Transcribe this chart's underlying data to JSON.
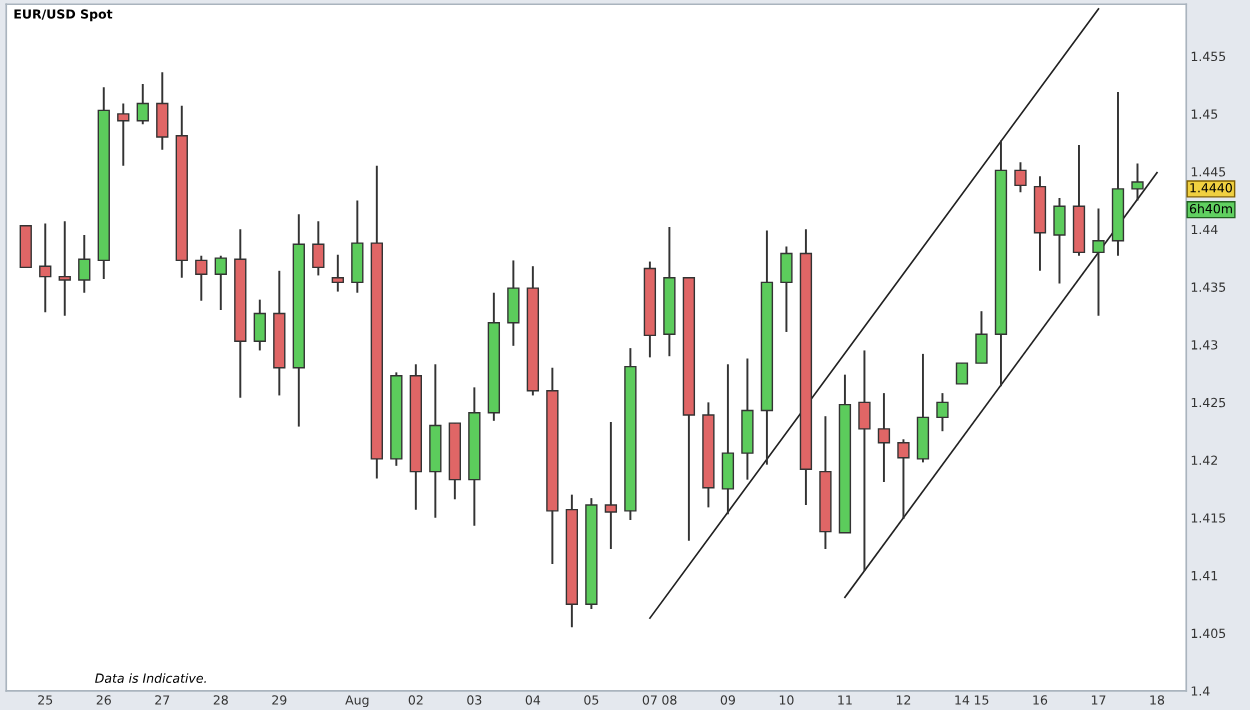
{
  "chart_data": {
    "type": "candlestick",
    "title": "EUR/USD Spot",
    "categories": [
      null,
      "25",
      null,
      null,
      "26",
      null,
      null,
      "27",
      null,
      null,
      "28",
      null,
      null,
      "29",
      null,
      null,
      null,
      "Aug",
      null,
      null,
      "02",
      null,
      null,
      "03",
      null,
      null,
      "04",
      null,
      null,
      "05",
      null,
      null,
      "07",
      "08",
      null,
      null,
      "09",
      null,
      null,
      "10",
      null,
      null,
      "11",
      null,
      null,
      "12",
      null,
      null,
      "14",
      "15",
      null,
      null,
      "16",
      null,
      null,
      "17",
      null,
      null,
      "18"
    ],
    "ohlc": [
      [
        1.4403,
        1.4403,
        1.4367,
        1.4367
      ],
      [
        1.4368,
        1.4405,
        1.4328,
        1.4359
      ],
      [
        1.4359,
        1.4407,
        1.4325,
        1.4356
      ],
      [
        1.4356,
        1.4395,
        1.4345,
        1.4374
      ],
      [
        1.4373,
        1.4523,
        1.4357,
        1.4503
      ],
      [
        1.45,
        1.4509,
        1.4455,
        1.4494
      ],
      [
        1.4494,
        1.4526,
        1.4491,
        1.4509
      ],
      [
        1.4509,
        1.4536,
        1.4469,
        1.448
      ],
      [
        1.4481,
        1.4507,
        1.4358,
        1.4373
      ],
      [
        1.4373,
        1.4377,
        1.4338,
        1.4361
      ],
      [
        1.4361,
        1.4377,
        1.433,
        1.4375
      ],
      [
        1.4374,
        1.44,
        1.4254,
        1.4303
      ],
      [
        1.4303,
        1.4339,
        1.4295,
        1.4327
      ],
      [
        1.4327,
        1.4364,
        1.4256,
        1.428
      ],
      [
        1.428,
        1.4413,
        1.4229,
        1.4387
      ],
      [
        1.4387,
        1.4407,
        1.436,
        1.4367
      ],
      [
        1.4358,
        1.4378,
        1.4346,
        1.4354
      ],
      [
        1.4354,
        1.4425,
        1.4345,
        1.4388
      ],
      [
        1.4388,
        1.4455,
        1.4184,
        1.4201
      ],
      [
        1.4201,
        1.4276,
        1.4195,
        1.4273
      ],
      [
        1.4273,
        1.4283,
        1.4157,
        1.419
      ],
      [
        1.419,
        1.4283,
        1.415,
        1.423
      ],
      [
        1.4232,
        1.4232,
        1.4166,
        1.4183
      ],
      [
        1.4183,
        1.4263,
        1.4143,
        1.4241
      ],
      [
        1.4241,
        1.4345,
        1.4234,
        1.4319
      ],
      [
        1.4319,
        1.4373,
        1.4299,
        1.4349
      ],
      [
        1.4349,
        1.4368,
        1.4256,
        1.426
      ],
      [
        1.426,
        1.428,
        1.411,
        1.4156
      ],
      [
        1.4157,
        1.417,
        1.4055,
        1.4075
      ],
      [
        1.4075,
        1.4167,
        1.4071,
        1.4161
      ],
      [
        1.4161,
        1.4233,
        1.4123,
        1.4155
      ],
      [
        1.4156,
        1.4297,
        1.4148,
        1.4281
      ],
      [
        1.4366,
        1.4372,
        1.4289,
        1.4308
      ],
      [
        1.4309,
        1.4402,
        1.429,
        1.4358
      ],
      [
        1.4358,
        1.4358,
        1.413,
        1.4239
      ],
      [
        1.4239,
        1.425,
        1.4159,
        1.4176
      ],
      [
        1.4175,
        1.4283,
        1.4153,
        1.4206
      ],
      [
        1.4206,
        1.4288,
        1.4183,
        1.4243
      ],
      [
        1.4243,
        1.4399,
        1.4196,
        1.4354
      ],
      [
        1.4354,
        1.4385,
        1.4311,
        1.4379
      ],
      [
        1.4379,
        1.44,
        1.4161,
        1.4192
      ],
      [
        1.419,
        1.4238,
        1.4123,
        1.4138
      ],
      [
        1.4137,
        1.4274,
        1.4137,
        1.4248
      ],
      [
        1.425,
        1.4295,
        1.4104,
        1.4227
      ],
      [
        1.4227,
        1.4258,
        1.4181,
        1.4215
      ],
      [
        1.4215,
        1.4218,
        1.4149,
        1.4202
      ],
      [
        1.4201,
        1.4292,
        1.4198,
        1.4237
      ],
      [
        1.4237,
        1.4258,
        1.4225,
        1.425
      ],
      [
        1.4266,
        1.4284,
        1.4266,
        1.4284
      ],
      [
        1.4284,
        1.4329,
        1.4284,
        1.4309
      ],
      [
        1.4309,
        1.4477,
        1.4264,
        1.4451
      ],
      [
        1.4451,
        1.4458,
        1.4432,
        1.4438
      ],
      [
        1.4437,
        1.4446,
        1.4364,
        1.4397
      ],
      [
        1.4395,
        1.4427,
        1.4353,
        1.442
      ],
      [
        1.442,
        1.4473,
        1.4377,
        1.438
      ],
      [
        1.438,
        1.4418,
        1.4325,
        1.439
      ],
      [
        1.439,
        1.4519,
        1.4377,
        1.4435
      ],
      [
        1.4435,
        1.4457,
        1.4425,
        1.4441
      ],
      null
    ],
    "colors": [
      "#e06666",
      "#e06666",
      "#e06666",
      "#5ccc5c",
      "#5ccc5c",
      "#e06666",
      "#5ccc5c",
      "#e06666",
      "#e06666",
      "#e06666",
      "#5ccc5c",
      "#e06666",
      "#5ccc5c",
      "#e06666",
      "#5ccc5c",
      "#e06666",
      "#e06666",
      "#5ccc5c",
      "#e06666",
      "#5ccc5c",
      "#e06666",
      "#5ccc5c",
      "#e06666",
      "#5ccc5c",
      "#5ccc5c",
      "#5ccc5c",
      "#e06666",
      "#e06666",
      "#e06666",
      "#5ccc5c",
      "#e06666",
      "#5ccc5c",
      "#e06666",
      "#5ccc5c",
      "#e06666",
      "#e06666",
      "#5ccc5c",
      "#5ccc5c",
      "#5ccc5c",
      "#5ccc5c",
      "#e06666",
      "#e06666",
      "#5ccc5c",
      "#e06666",
      "#e06666",
      "#e06666",
      "#5ccc5c",
      "#5ccc5c",
      "#5ccc5c",
      "#5ccc5c",
      "#5ccc5c",
      "#e06666",
      "#e06666",
      "#5ccc5c",
      "#e06666",
      "#5ccc5c",
      "#5ccc5c",
      "#5ccc5c",
      null
    ],
    "series": [
      {
        "type": "line",
        "color": "#222222",
        "x": [
          "07",
          "17"
        ],
        "values": [
          1.4063,
          1.4591
        ]
      },
      {
        "type": "line",
        "color": "#222222",
        "x": [
          "11",
          "18"
        ],
        "values": [
          1.4081,
          1.4449
        ]
      }
    ],
    "ylim": [
      1.4,
      1.4595
    ],
    "yticks": [
      1.4,
      1.405,
      1.41,
      1.415,
      1.42,
      1.425,
      1.43,
      1.435,
      1.44,
      1.445,
      1.45,
      1.455
    ],
    "annotations": [
      "Data is Indicative.",
      "1.4440",
      "6h40m"
    ]
  }
}
